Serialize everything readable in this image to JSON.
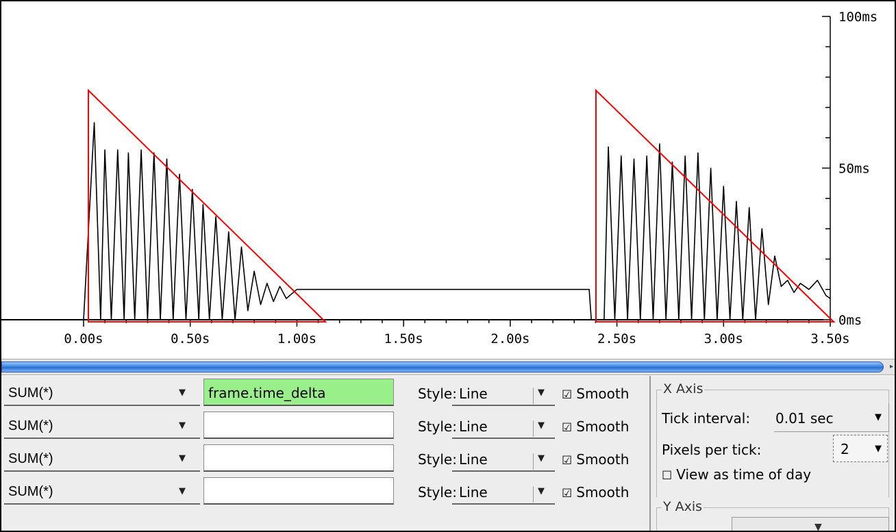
{
  "graph": {
    "y_labels": [
      "100ms",
      "50ms",
      "0ms"
    ],
    "x_labels": [
      "0.00s",
      "0.50s",
      "1.00s",
      "1.50s",
      "2.00s",
      "2.50s",
      "3.00s",
      "3.50s"
    ],
    "trace_color": "#000000",
    "annotation_color": "#ff0000"
  },
  "chart_data": {
    "type": "line",
    "x_ticks": [
      "0.00s",
      "0.50s",
      "1.00s",
      "1.50s",
      "2.00s",
      "2.50s",
      "3.00s",
      "3.50s"
    ],
    "y_ticks": [
      "0ms",
      "50ms",
      "100ms"
    ],
    "xlim": [
      0,
      3.5
    ],
    "ylim": [
      0,
      100
    ],
    "series": [
      {
        "values_summary": "Spiky burst from 0.02s to ~1.0s with peaks decaying from ~65ms to ~10ms, flat plateau ~10ms from 1.0s to 2.38s, drop to 0, second spiky burst from 2.45s to 3.5s with peaks decaying from ~57ms to ~8ms",
        "points": [
          [
            0.0,
            0
          ],
          [
            0.05,
            65
          ],
          [
            0.08,
            0
          ],
          [
            0.1,
            56
          ],
          [
            0.13,
            0
          ],
          [
            0.16,
            56
          ],
          [
            0.19,
            0
          ],
          [
            0.21,
            55
          ],
          [
            0.24,
            0
          ],
          [
            0.27,
            56
          ],
          [
            0.3,
            0
          ],
          [
            0.33,
            55
          ],
          [
            0.36,
            0
          ],
          [
            0.39,
            53
          ],
          [
            0.42,
            0
          ],
          [
            0.45,
            48
          ],
          [
            0.48,
            0
          ],
          [
            0.51,
            43
          ],
          [
            0.54,
            0
          ],
          [
            0.56,
            38
          ],
          [
            0.59,
            0
          ],
          [
            0.62,
            34
          ],
          [
            0.65,
            0
          ],
          [
            0.68,
            29
          ],
          [
            0.71,
            0
          ],
          [
            0.74,
            24
          ],
          [
            0.77,
            3
          ],
          [
            0.8,
            16
          ],
          [
            0.83,
            5
          ],
          [
            0.86,
            12
          ],
          [
            0.89,
            6
          ],
          [
            0.92,
            11
          ],
          [
            0.95,
            7
          ],
          [
            1.0,
            10
          ],
          [
            1.5,
            10
          ],
          [
            2.0,
            10
          ],
          [
            2.37,
            10
          ],
          [
            2.38,
            0
          ],
          [
            2.44,
            0
          ],
          [
            2.46,
            57
          ],
          [
            2.49,
            0
          ],
          [
            2.52,
            54
          ],
          [
            2.55,
            0
          ],
          [
            2.58,
            53
          ],
          [
            2.61,
            0
          ],
          [
            2.64,
            54
          ],
          [
            2.67,
            0
          ],
          [
            2.7,
            58
          ],
          [
            2.73,
            0
          ],
          [
            2.76,
            52
          ],
          [
            2.79,
            0
          ],
          [
            2.82,
            54
          ],
          [
            2.85,
            0
          ],
          [
            2.88,
            55
          ],
          [
            2.91,
            0
          ],
          [
            2.94,
            50
          ],
          [
            2.97,
            0
          ],
          [
            3.0,
            44
          ],
          [
            3.03,
            0
          ],
          [
            3.06,
            39
          ],
          [
            3.09,
            0
          ],
          [
            3.12,
            37
          ],
          [
            3.15,
            0
          ],
          [
            3.18,
            30
          ],
          [
            3.21,
            5
          ],
          [
            3.24,
            21
          ],
          [
            3.27,
            11
          ],
          [
            3.3,
            13
          ],
          [
            3.33,
            9
          ],
          [
            3.36,
            12
          ],
          [
            3.4,
            10
          ],
          [
            3.44,
            13
          ],
          [
            3.48,
            8
          ],
          [
            3.5,
            7
          ]
        ]
      }
    ],
    "annotations": "two red right-triangle outlines marking decaying bursts"
  },
  "graph_rows": [
    {
      "calc": "SUM(*)",
      "field": "frame.time_delta",
      "style_label": "Style:",
      "style": "Line",
      "smooth": "Smooth",
      "smooth_checked": true
    },
    {
      "calc": "SUM(*)",
      "field": "",
      "style_label": "Style:",
      "style": "Line",
      "smooth": "Smooth",
      "smooth_checked": true
    },
    {
      "calc": "SUM(*)",
      "field": "",
      "style_label": "Style:",
      "style": "Line",
      "smooth": "Smooth",
      "smooth_checked": true
    },
    {
      "calc": "SUM(*)",
      "field": "",
      "style_label": "Style:",
      "style": "Line",
      "smooth": "Smooth",
      "smooth_checked": true
    }
  ],
  "x_axis": {
    "title": "X Axis",
    "tick_interval_label": "Tick interval:",
    "tick_interval_value": "0.01 sec",
    "pixels_per_tick_label": "Pixels per tick:",
    "pixels_per_tick_value": "2",
    "view_time_of_day": "View as time of day",
    "view_time_of_day_checked": false
  },
  "y_axis": {
    "title": "Y Axis"
  }
}
